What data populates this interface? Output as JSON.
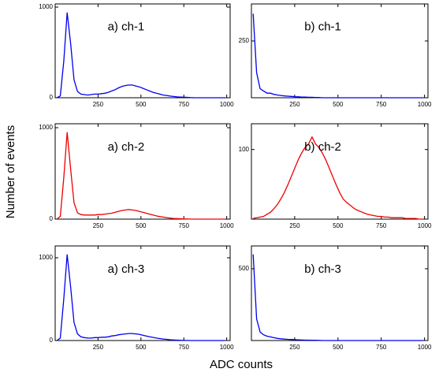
{
  "ylabel": "Number of events",
  "xlabel": "ADC counts",
  "chart_data": [
    {
      "type": "line",
      "annotation": "a) ch-1",
      "color": "#0000ee",
      "xlim": [
        0,
        1020
      ],
      "ylim": [
        0,
        1035
      ],
      "xticks": [
        250,
        500,
        750,
        1000
      ],
      "yticks": [
        0,
        1000
      ],
      "x": [
        10,
        30,
        50,
        70,
        90,
        110,
        130,
        150,
        170,
        190,
        210,
        230,
        250,
        270,
        290,
        310,
        330,
        350,
        370,
        390,
        410,
        430,
        450,
        470,
        490,
        510,
        530,
        550,
        570,
        590,
        610,
        630,
        650,
        670,
        690,
        710,
        730,
        750,
        770,
        790,
        810,
        830,
        850,
        870,
        890,
        910,
        930,
        950,
        970,
        990
      ],
      "values": [
        0,
        20,
        400,
        940,
        600,
        200,
        70,
        40,
        35,
        30,
        35,
        40,
        40,
        45,
        50,
        60,
        75,
        90,
        110,
        125,
        135,
        140,
        140,
        130,
        120,
        105,
        90,
        75,
        60,
        50,
        40,
        30,
        25,
        18,
        14,
        10,
        8,
        6,
        4,
        2,
        0,
        0,
        0,
        0,
        0,
        0,
        0,
        0,
        0,
        0
      ]
    },
    {
      "type": "line",
      "annotation": "b) ch-1",
      "color": "#0000ee",
      "xlim": [
        0,
        1020
      ],
      "ylim": [
        0,
        413
      ],
      "xticks": [
        250,
        500,
        750,
        1000
      ],
      "yticks": [
        250
      ],
      "x": [
        10,
        30,
        50,
        70,
        90,
        110,
        130,
        150,
        170,
        190,
        210,
        230,
        250,
        270,
        290,
        310,
        330,
        350,
        370,
        390,
        410,
        430,
        450,
        470,
        490,
        510,
        530,
        550,
        570,
        590,
        610,
        630,
        650,
        670,
        690,
        710,
        730,
        750,
        770,
        790,
        810,
        830,
        850,
        870,
        890,
        910,
        930,
        950,
        970,
        990
      ],
      "values": [
        370,
        110,
        40,
        30,
        20,
        20,
        15,
        12,
        10,
        8,
        7,
        6,
        5,
        4,
        3,
        3,
        2,
        2,
        1,
        1,
        0,
        0,
        0,
        0,
        0,
        0,
        0,
        0,
        0,
        0,
        0,
        0,
        0,
        0,
        0,
        0,
        0,
        0,
        0,
        0,
        0,
        0,
        0,
        0,
        0,
        0,
        0,
        0,
        0,
        0
      ]
    },
    {
      "type": "line",
      "annotation": "a) ch-2",
      "color": "#ee0000",
      "xlim": [
        0,
        1020
      ],
      "ylim": [
        0,
        1043
      ],
      "xticks": [
        250,
        500,
        750,
        1000
      ],
      "yticks": [
        0,
        1000
      ],
      "x": [
        10,
        30,
        50,
        70,
        90,
        110,
        130,
        150,
        170,
        190,
        210,
        230,
        250,
        270,
        290,
        310,
        330,
        350,
        370,
        390,
        410,
        430,
        450,
        470,
        490,
        510,
        530,
        550,
        570,
        590,
        610,
        630,
        650,
        670,
        690,
        710,
        730,
        750,
        770,
        790,
        810,
        830,
        850,
        870,
        890,
        910,
        930,
        950,
        970,
        990
      ],
      "values": [
        0,
        30,
        450,
        950,
        550,
        180,
        70,
        50,
        45,
        45,
        45,
        45,
        50,
        50,
        55,
        60,
        65,
        75,
        85,
        95,
        100,
        105,
        100,
        95,
        85,
        75,
        65,
        55,
        45,
        35,
        28,
        22,
        16,
        12,
        8,
        6,
        4,
        3,
        2,
        1,
        0,
        0,
        0,
        0,
        0,
        0,
        0,
        0,
        0,
        0
      ]
    },
    {
      "type": "line",
      "annotation": "b) ch-2",
      "color": "#ee0000",
      "xlim": [
        0,
        1020
      ],
      "ylim": [
        0,
        137
      ],
      "xticks": [
        250,
        500,
        750,
        1000
      ],
      "yticks": [
        100
      ],
      "x": [
        10,
        30,
        50,
        70,
        90,
        110,
        130,
        150,
        170,
        190,
        210,
        230,
        250,
        270,
        290,
        310,
        330,
        350,
        370,
        390,
        410,
        430,
        450,
        470,
        490,
        510,
        530,
        550,
        570,
        590,
        610,
        630,
        650,
        670,
        690,
        710,
        730,
        750,
        770,
        790,
        810,
        830,
        850,
        870,
        890,
        910,
        930,
        950,
        970,
        990
      ],
      "values": [
        1,
        2,
        3,
        4,
        7,
        10,
        15,
        21,
        29,
        38,
        49,
        61,
        73,
        85,
        95,
        103,
        108,
        118,
        108,
        103,
        95,
        85,
        73,
        61,
        49,
        38,
        29,
        24,
        20,
        16,
        13,
        11,
        9,
        7,
        6,
        5,
        4,
        4,
        3,
        3,
        2,
        2,
        2,
        2,
        1,
        1,
        1,
        1,
        0,
        0
      ]
    },
    {
      "type": "line",
      "annotation": "a) ch-3",
      "color": "#0000ee",
      "xlim": [
        0,
        1020
      ],
      "ylim": [
        0,
        1143
      ],
      "xticks": [
        250,
        500,
        750,
        1000
      ],
      "yticks": [
        0,
        1000
      ],
      "x": [
        10,
        30,
        50,
        70,
        90,
        110,
        130,
        150,
        170,
        190,
        210,
        230,
        250,
        270,
        290,
        310,
        330,
        350,
        370,
        390,
        410,
        430,
        450,
        470,
        490,
        510,
        530,
        550,
        570,
        590,
        610,
        630,
        650,
        670,
        690,
        710,
        730,
        750,
        770,
        790,
        810,
        830,
        850,
        870,
        890,
        910,
        930,
        950,
        970,
        990
      ],
      "values": [
        0,
        30,
        500,
        1040,
        650,
        220,
        80,
        45,
        35,
        30,
        30,
        35,
        35,
        40,
        40,
        45,
        55,
        60,
        70,
        75,
        80,
        85,
        85,
        80,
        75,
        65,
        55,
        45,
        38,
        30,
        24,
        18,
        14,
        10,
        7,
        5,
        3,
        2,
        1,
        0,
        0,
        0,
        0,
        0,
        0,
        0,
        0,
        0,
        0,
        0
      ]
    },
    {
      "type": "line",
      "annotation": "b) ch-3",
      "color": "#0000ee",
      "xlim": [
        0,
        1020
      ],
      "ylim": [
        0,
        659
      ],
      "xticks": [
        250,
        500,
        750,
        1000
      ],
      "yticks": [
        500
      ],
      "x": [
        10,
        30,
        50,
        70,
        90,
        110,
        130,
        150,
        170,
        190,
        210,
        230,
        250,
        270,
        290,
        310,
        330,
        350,
        370,
        390,
        410,
        430,
        450,
        470,
        490,
        510,
        530,
        550,
        570,
        590,
        610,
        630,
        650,
        670,
        690,
        710,
        730,
        750,
        770,
        790,
        810,
        830,
        850,
        870,
        890,
        910,
        930,
        950,
        970,
        990
      ],
      "values": [
        600,
        150,
        60,
        40,
        30,
        25,
        20,
        15,
        12,
        10,
        8,
        7,
        6,
        5,
        4,
        3,
        3,
        2,
        2,
        1,
        0,
        0,
        0,
        0,
        0,
        0,
        0,
        0,
        0,
        0,
        0,
        0,
        0,
        0,
        0,
        0,
        0,
        0,
        0,
        0,
        0,
        0,
        0,
        0,
        0,
        0,
        0,
        0,
        0,
        0
      ]
    }
  ]
}
